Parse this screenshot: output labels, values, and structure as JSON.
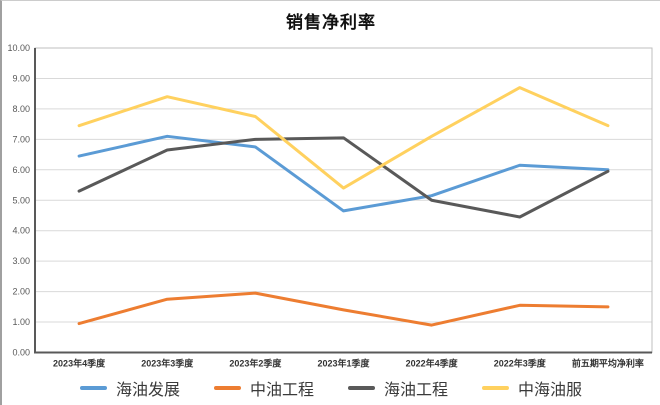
{
  "title": "销售净利率",
  "chart_data": {
    "type": "line",
    "title": "销售净利率",
    "categories": [
      "2023年4季度",
      "2023年3季度",
      "2023年2季度",
      "2023年1季度",
      "2022年4季度",
      "2022年3季度",
      "前五期平均净利率"
    ],
    "series": [
      {
        "name": "海油发展",
        "color": "#5B9BD5",
        "values": [
          6.45,
          7.1,
          6.75,
          4.65,
          5.15,
          6.15,
          6.0
        ]
      },
      {
        "name": "中油工程",
        "color": "#ED7D31",
        "values": [
          0.95,
          1.75,
          1.95,
          1.4,
          0.9,
          1.55,
          1.5
        ]
      },
      {
        "name": "海油工程",
        "color": "#595959",
        "values": [
          5.3,
          6.65,
          7.0,
          7.05,
          5.0,
          4.45,
          5.95
        ]
      },
      {
        "name": "中海油服",
        "color": "#FFD15F",
        "values": [
          7.45,
          8.4,
          7.75,
          5.4,
          7.1,
          8.7,
          7.45
        ]
      }
    ],
    "ylim": [
      0,
      10
    ],
    "ytick_step": 1,
    "ytick_labels": [
      "0.00",
      "1.00",
      "2.00",
      "3.00",
      "4.00",
      "5.00",
      "6.00",
      "7.00",
      "8.00",
      "9.00",
      "10.00"
    ],
    "grid": true,
    "gridline_color": "#D9D9D9",
    "axis_color": "#595959",
    "border_color": "#BFBFBF",
    "legend_position": "bottom"
  }
}
